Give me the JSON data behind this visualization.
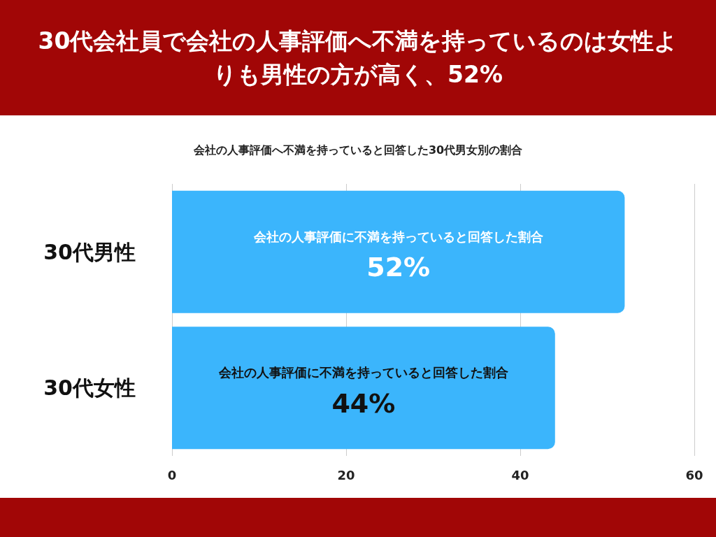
{
  "chart_data": {
    "type": "bar",
    "orientation": "horizontal",
    "title": "30代会社員で会社の人事評価へ不満を持っているのは女性よりも男性の方が高く、52%",
    "subtitle": "会社の人事評価へ不満を持っていると回答した30代男女別の割合",
    "categories": [
      "30代男性",
      "30代女性"
    ],
    "values": [
      52,
      44
    ],
    "color": "#3bb5fc",
    "value_labels": [
      "52%",
      "44%"
    ],
    "annotations": [
      "会社の人事評価に不満を持っていると回答した割合",
      "会社の人事評価に不満を持っていると回答した割合"
    ],
    "xlim": [
      0,
      60
    ],
    "xticks": [
      0,
      20,
      40,
      60
    ],
    "grid": "x"
  }
}
